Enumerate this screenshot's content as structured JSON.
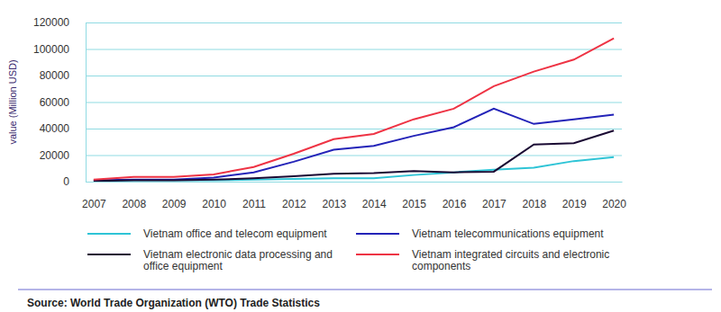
{
  "chart_data": {
    "type": "line",
    "y_label": "value (Million USD)",
    "source": "Source: World Trade Organization (WTO) Trade Statistics",
    "categories": [
      "2007",
      "2008",
      "2009",
      "2010",
      "2011",
      "2012",
      "2013",
      "2014",
      "2015",
      "2016",
      "2017",
      "2018",
      "2019",
      "2020"
    ],
    "ylim": [
      0,
      120000
    ],
    "yticks": [
      0,
      20000,
      40000,
      60000,
      80000,
      100000,
      120000
    ],
    "grid": true,
    "legend": "bottom",
    "series": [
      {
        "name": "Vietnam office and telecom equipment",
        "color": "#2ec4d6",
        "values": [
          500,
          1000,
          1000,
          1000,
          1500,
          2000,
          2500,
          2500,
          5000,
          7000,
          9000,
          10500,
          15500,
          18500
        ]
      },
      {
        "name": "Vietnam telecommunications equipment",
        "color": "#2323b8",
        "values": [
          1000,
          1500,
          1500,
          3000,
          7000,
          15000,
          24000,
          27000,
          34500,
          41000,
          55000,
          43500,
          47000,
          50500
        ]
      },
      {
        "name": "Vietnam electronic data processing and office equipment",
        "color": "#1a0a33",
        "values": [
          500,
          1000,
          1000,
          1500,
          2500,
          4000,
          6000,
          6500,
          8000,
          7000,
          7500,
          28000,
          29000,
          38500
        ]
      },
      {
        "name": "Vietnam integrated circuits and electronic components",
        "color": "#ee3344",
        "values": [
          1500,
          3500,
          3500,
          5500,
          11000,
          21000,
          32000,
          36000,
          47000,
          55000,
          72000,
          83000,
          92000,
          108000
        ]
      }
    ]
  }
}
